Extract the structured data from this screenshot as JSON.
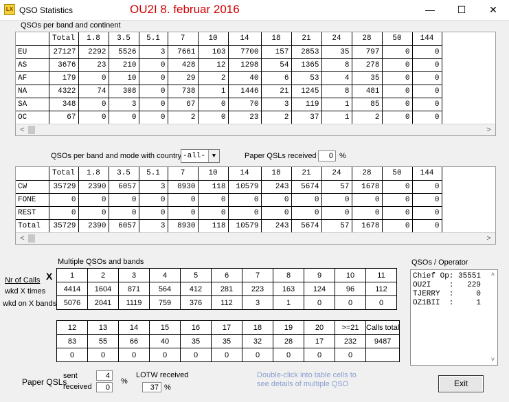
{
  "window": {
    "title": "QSO Statistics",
    "heading": "OU2I  8. februar 2016",
    "icon": "app-logo-icon",
    "controls": {
      "minimize": "—",
      "maximize": "☐",
      "close": "✕"
    }
  },
  "continent": {
    "label": "QSOs per band and continent",
    "headers": [
      "",
      "Total",
      "1.8",
      "3.5",
      "5.1",
      "7",
      "10",
      "14",
      "18",
      "21",
      "24",
      "28",
      "50",
      "144"
    ],
    "rows": [
      [
        "EU",
        "27127",
        "2292",
        "5526",
        "3",
        "7661",
        "103",
        "7700",
        "157",
        "2853",
        "35",
        "797",
        "0",
        "0"
      ],
      [
        "AS",
        "3676",
        "23",
        "210",
        "0",
        "428",
        "12",
        "1298",
        "54",
        "1365",
        "8",
        "278",
        "0",
        "0"
      ],
      [
        "AF",
        "179",
        "0",
        "10",
        "0",
        "29",
        "2",
        "40",
        "6",
        "53",
        "4",
        "35",
        "0",
        "0"
      ],
      [
        "NA",
        "4322",
        "74",
        "308",
        "0",
        "738",
        "1",
        "1446",
        "21",
        "1245",
        "8",
        "481",
        "0",
        "0"
      ],
      [
        "SA",
        "348",
        "0",
        "3",
        "0",
        "67",
        "0",
        "70",
        "3",
        "119",
        "1",
        "85",
        "0",
        "0"
      ],
      [
        "OC",
        "67",
        "0",
        "0",
        "0",
        "2",
        "0",
        "23",
        "2",
        "37",
        "1",
        "2",
        "0",
        "0"
      ]
    ]
  },
  "mode": {
    "label": "QSOs per band and mode with country",
    "country_value": "-all-",
    "paper_label": "Paper QSLs received",
    "paper_value": "0",
    "percent": "%",
    "headers": [
      "",
      "Total",
      "1.8",
      "3.5",
      "5.1",
      "7",
      "10",
      "14",
      "18",
      "21",
      "24",
      "28",
      "50",
      "144"
    ],
    "rows": [
      [
        "CW",
        "35729",
        "2390",
        "6057",
        "3",
        "8930",
        "118",
        "10579",
        "243",
        "5674",
        "57",
        "1678",
        "0",
        "0"
      ],
      [
        "FONE",
        "0",
        "0",
        "0",
        "0",
        "0",
        "0",
        "0",
        "0",
        "0",
        "0",
        "0",
        "0",
        "0"
      ],
      [
        "REST",
        "0",
        "0",
        "0",
        "0",
        "0",
        "0",
        "0",
        "0",
        "0",
        "0",
        "0",
        "0",
        "0"
      ],
      [
        "Total",
        "35729",
        "2390",
        "6057",
        "3",
        "8930",
        "118",
        "10579",
        "243",
        "5674",
        "57",
        "1678",
        "0",
        "0"
      ]
    ]
  },
  "multiple": {
    "label": "Multiple QSOs and bands",
    "nr_label": "Nr of Calls",
    "x_label": "X",
    "wkd_times": "wkd X times",
    "wkd_bands": "wkd on X bands",
    "top": {
      "headers": [
        "1",
        "2",
        "3",
        "4",
        "5",
        "6",
        "7",
        "8",
        "9",
        "10",
        "11"
      ],
      "times": [
        "4414",
        "1604",
        "871",
        "564",
        "412",
        "281",
        "223",
        "163",
        "124",
        "96",
        "112"
      ],
      "bands": [
        "5076",
        "2041",
        "1119",
        "759",
        "376",
        "112",
        "3",
        "1",
        "0",
        "0",
        "0"
      ]
    },
    "bottom": {
      "headers": [
        "12",
        "13",
        "14",
        "15",
        "16",
        "17",
        "18",
        "19",
        "20",
        ">=21",
        "Calls total"
      ],
      "times": [
        "83",
        "55",
        "66",
        "40",
        "35",
        "35",
        "32",
        "28",
        "17",
        "232",
        "9487"
      ],
      "bands": [
        "0",
        "0",
        "0",
        "0",
        "0",
        "0",
        "0",
        "0",
        "0",
        "0",
        ""
      ]
    }
  },
  "operators": {
    "label": "QSOs / Operator",
    "rows": [
      "Chief Op: 35551",
      "OU2I    :   229",
      "TJERRY  :     0",
      "OZ1BII  :     1"
    ]
  },
  "paper": {
    "label": "Paper QSLs",
    "sent_label": "sent",
    "received_label": "received",
    "sent_value": "4",
    "received_value": "0",
    "percent": "%"
  },
  "lotw": {
    "label": "LOTW received",
    "value": "37",
    "percent": "%"
  },
  "hint": {
    "line1": "Double-click into table cells to",
    "line2": "see details of multiple QSO"
  },
  "exit_label": "Exit"
}
